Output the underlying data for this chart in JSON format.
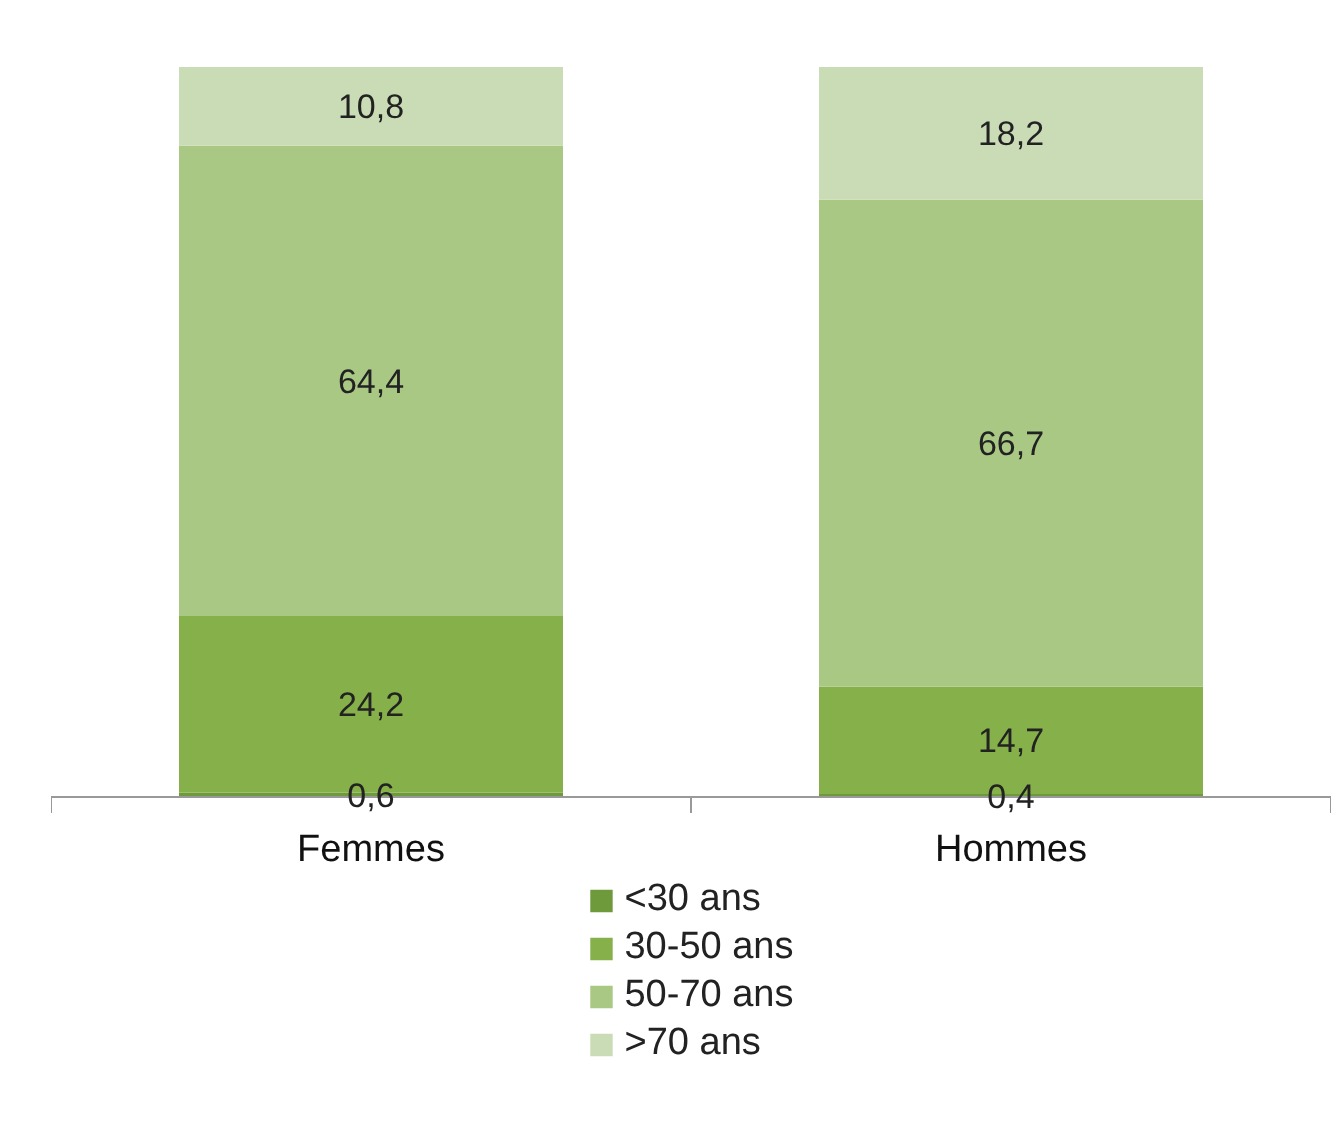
{
  "chart_data": {
    "type": "bar",
    "stacked": true,
    "categories": [
      "Femmes",
      "Hommes"
    ],
    "legend": "bottom",
    "series": [
      {
        "name": "<30 ans",
        "color": "#6f9a3c",
        "values": [
          0.6,
          0.4
        ],
        "value_labels": [
          "0,6",
          "0,4"
        ]
      },
      {
        "name": "30-50 ans",
        "color": "#86b04a",
        "values": [
          24.2,
          14.7
        ],
        "value_labels": [
          "24,2",
          "14,7"
        ]
      },
      {
        "name": "50-70 ans",
        "color": "#a8c884",
        "values": [
          64.4,
          66.7
        ],
        "value_labels": [
          "64,4",
          "66,7"
        ]
      },
      {
        "name": ">70 ans",
        "color": "#cadcb5",
        "values": [
          10.8,
          18.2
        ],
        "value_labels": [
          "10,8",
          "18,2"
        ]
      }
    ]
  }
}
